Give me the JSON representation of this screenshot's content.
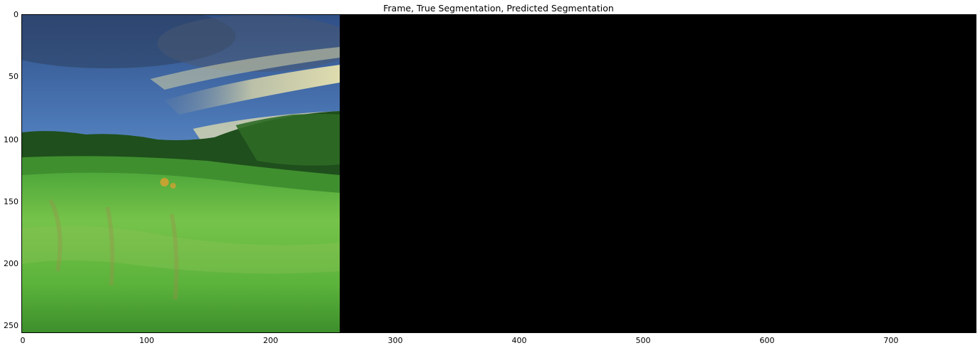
{
  "figure": {
    "title": "Frame, True Segmentation, Predicted Segmentation"
  },
  "axes": {
    "x_ticks": [
      "0",
      "100",
      "200",
      "300",
      "400",
      "500",
      "600",
      "700"
    ],
    "y_ticks": [
      "0",
      "50",
      "100",
      "150",
      "200",
      "250"
    ],
    "x_max": 768,
    "y_max": 256
  },
  "panels": [
    {
      "name": "frame",
      "x_range": [
        0,
        256
      ],
      "content": "landscape photo"
    },
    {
      "name": "true-segmentation",
      "x_range": [
        256,
        512
      ],
      "color": "#000000"
    },
    {
      "name": "predicted-segmentation",
      "x_range": [
        512,
        768
      ],
      "color": "#000000"
    }
  ],
  "colors": {
    "sky": "#5a85c0",
    "cloud": "#e8e2a8",
    "trees": "#1f5a1d",
    "grass": "#5cc23a",
    "segmentation": "#000000"
  }
}
